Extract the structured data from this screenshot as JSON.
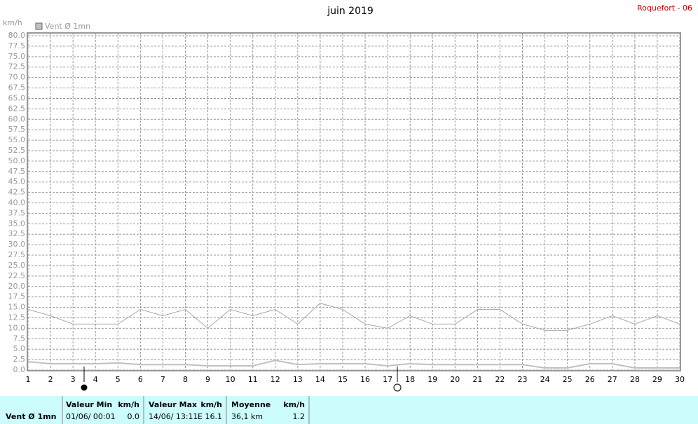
{
  "chart_data": {
    "type": "line",
    "title": "juin 2019",
    "station": "Roquefort - 06",
    "y_unit": "km/h",
    "x": [
      1,
      2,
      3,
      4,
      5,
      6,
      7,
      8,
      9,
      10,
      11,
      12,
      13,
      14,
      15,
      16,
      17,
      18,
      19,
      20,
      21,
      22,
      23,
      24,
      25,
      26,
      27,
      28,
      29,
      30
    ],
    "xlim": [
      1,
      30
    ],
    "xticks": [
      1,
      2,
      3,
      4,
      5,
      6,
      7,
      8,
      9,
      10,
      11,
      12,
      13,
      14,
      15,
      16,
      17,
      18,
      19,
      20,
      21,
      22,
      23,
      24,
      25,
      26,
      27,
      28,
      29,
      30
    ],
    "ylim": [
      0,
      80
    ],
    "yticks": [
      {
        "value": 0,
        "label": "0.0"
      },
      {
        "value": 2.5,
        "label": "2.5"
      },
      {
        "value": 5,
        "label": "5.0"
      },
      {
        "value": 7.5,
        "label": "7.5"
      },
      {
        "value": 10,
        "label": "10.0"
      },
      {
        "value": 12.5,
        "label": "12.5"
      },
      {
        "value": 15,
        "label": "15.0"
      },
      {
        "value": 17.5,
        "label": "17.5"
      },
      {
        "value": 20,
        "label": "20.0"
      },
      {
        "value": 22.5,
        "label": "22.5"
      },
      {
        "value": 25,
        "label": "25.0"
      },
      {
        "value": 27.5,
        "label": "27.5"
      },
      {
        "value": 30,
        "label": "30.0"
      },
      {
        "value": 32.5,
        "label": "32.5"
      },
      {
        "value": 35,
        "label": "35.0"
      },
      {
        "value": 37.5,
        "label": "37.5"
      },
      {
        "value": 40,
        "label": "40.0"
      },
      {
        "value": 42.5,
        "label": "42.5"
      },
      {
        "value": 45,
        "label": "45.0"
      },
      {
        "value": 47.5,
        "label": "47.5"
      },
      {
        "value": 50,
        "label": "50.0"
      },
      {
        "value": 52.5,
        "label": "52.5"
      },
      {
        "value": 55,
        "label": "55.0"
      },
      {
        "value": 57.5,
        "label": "57.5"
      },
      {
        "value": 60,
        "label": "60.0"
      },
      {
        "value": 62.5,
        "label": "62.5"
      },
      {
        "value": 65,
        "label": "65.0"
      },
      {
        "value": 67.5,
        "label": "67.5"
      },
      {
        "value": 70,
        "label": "70.0"
      },
      {
        "value": 72.5,
        "label": "72.5"
      },
      {
        "value": 75,
        "label": "75.0"
      },
      {
        "value": 77.5,
        "label": "77.5"
      },
      {
        "value": 80,
        "label": "80.0"
      }
    ],
    "grid": true,
    "series": [
      {
        "name": "Vent Ø 1mn",
        "color": "#c0c0c0",
        "values": [
          2,
          1.5,
          1.5,
          1.5,
          1.7,
          1.3,
          1.3,
          1.3,
          1,
          1,
          1,
          2.3,
          1.3,
          1.5,
          1.5,
          1.5,
          1,
          1.5,
          1.3,
          1.3,
          1.3,
          1.3,
          1.3,
          0.5,
          0.5,
          1.5,
          1.5,
          0.5,
          0.5,
          0.5
        ]
      },
      {
        "color": "#a8a8a8",
        "values": [
          14.5,
          13,
          11,
          11,
          11,
          14.5,
          13,
          14.5,
          10,
          14.5,
          13,
          14.5,
          11,
          16,
          14.5,
          11,
          10,
          13,
          11,
          11,
          14.5,
          14.5,
          11,
          9.5,
          9.5,
          11,
          13,
          11,
          13,
          11
        ]
      }
    ]
  },
  "footer": {
    "label": "Vent Ø 1mn",
    "min": {
      "title": "Valeur Min",
      "unit": "km/h",
      "date": "01/06/  00:01",
      "value": "0.0"
    },
    "max": {
      "title": "Valeur Max",
      "unit": "km/h",
      "date": "14/06/  13:11",
      "value": "E 16.1"
    },
    "mean": {
      "title": "Moyenne",
      "unit": "km/h",
      "date": "36,1 km",
      "value": "1.2"
    }
  }
}
